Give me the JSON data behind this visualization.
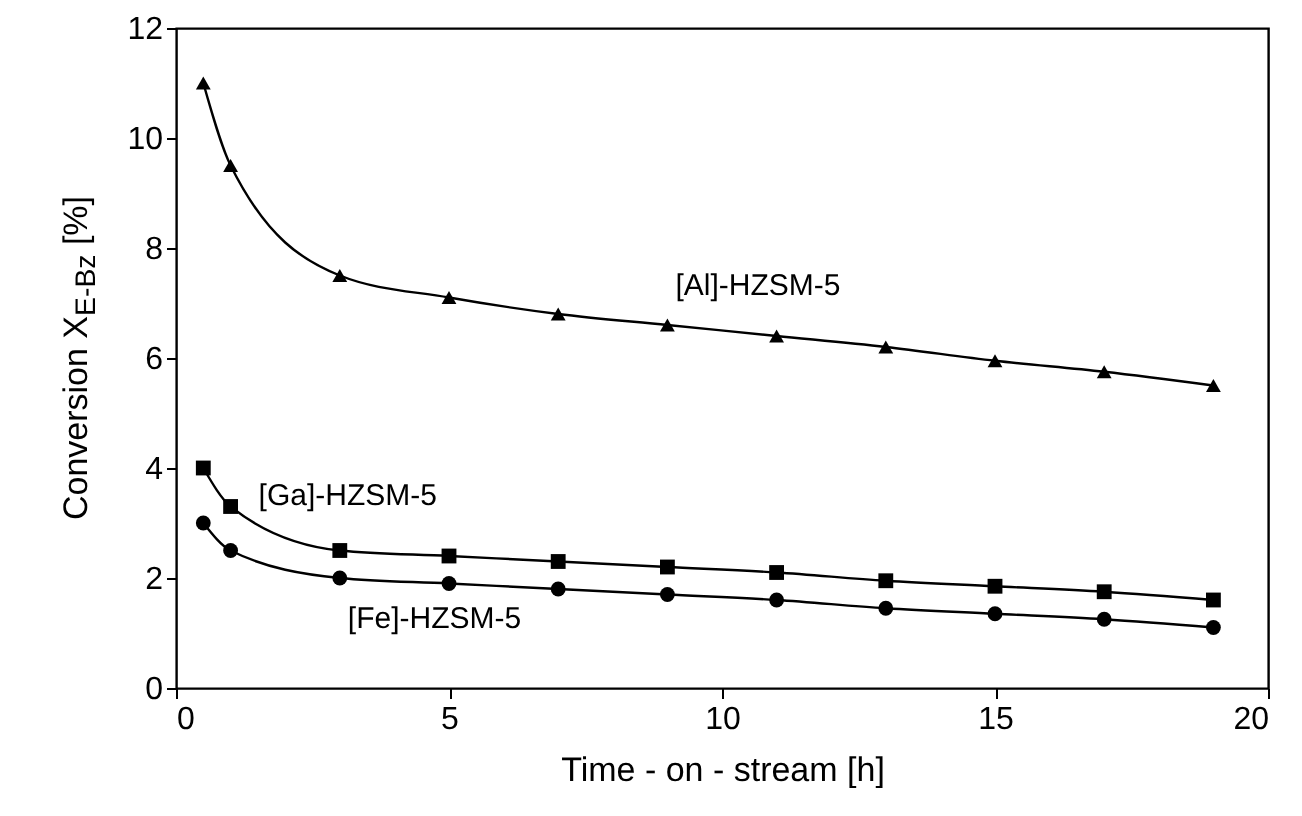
{
  "chart_data": {
    "type": "line",
    "xlabel": "Time - on - stream [h]",
    "ylabel": "Conversion X$_{E-Bz}$ [%]",
    "x": [
      0.5,
      1,
      3,
      5,
      7,
      9,
      11,
      13,
      15,
      17,
      19
    ],
    "series": [
      {
        "name": "[Al]-HZSM-5",
        "color": "#000000",
        "marker": "triangle",
        "values": [
          11.0,
          9.5,
          7.5,
          7.1,
          6.8,
          6.6,
          6.4,
          6.2,
          5.95,
          5.75,
          5.5
        ]
      },
      {
        "name": "[Ga]-HZSM-5",
        "color": "#000000",
        "marker": "square",
        "values": [
          4.0,
          3.3,
          2.5,
          2.4,
          2.3,
          2.2,
          2.1,
          1.95,
          1.85,
          1.75,
          1.6
        ]
      },
      {
        "name": "[Fe]-HZSM-5",
        "color": "#000000",
        "marker": "circle",
        "values": [
          3.0,
          2.5,
          2.0,
          1.9,
          1.8,
          1.7,
          1.6,
          1.45,
          1.35,
          1.25,
          1.1
        ]
      }
    ],
    "xlim": [
      0,
      20
    ],
    "xticks": [
      0,
      5,
      10,
      15,
      20
    ],
    "ylim": [
      0,
      12
    ],
    "yticks": [
      0,
      2,
      4,
      6,
      8,
      10,
      12
    ],
    "grid": false
  }
}
